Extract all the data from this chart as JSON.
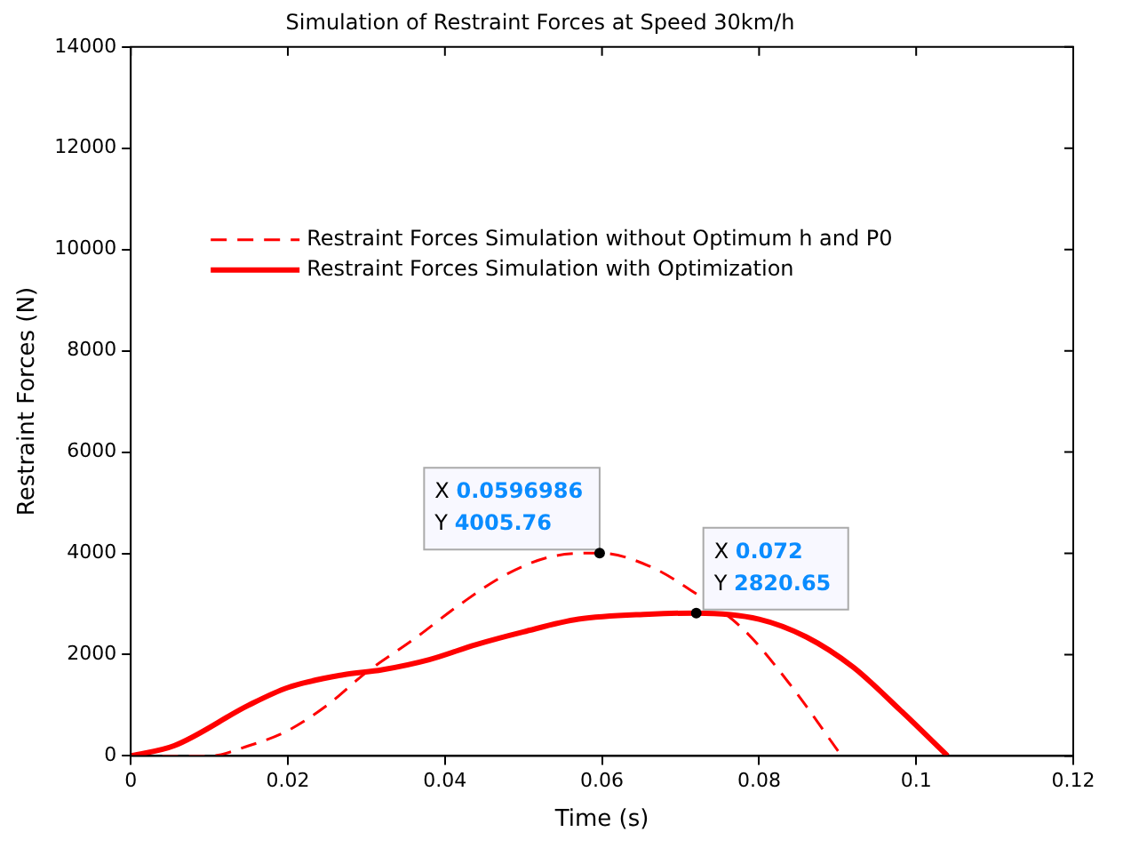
{
  "chart_data": {
    "type": "line",
    "title": "Simulation of Restraint Forces at Speed 30km/h",
    "xlabel": "Time (s)",
    "ylabel": "Restraint Forces (N)",
    "xlim": [
      0,
      0.12
    ],
    "xticks": [
      0,
      0.02,
      0.04,
      0.06,
      0.08,
      0.1,
      0.12
    ],
    "ylim": [
      0,
      14000
    ],
    "yticks": [
      0,
      2000,
      4000,
      6000,
      8000,
      10000,
      12000,
      14000
    ],
    "grid": false,
    "legend": "top left",
    "marker": "none",
    "series": [
      {
        "name": "Restraint Forces Simulation without Optimum h and P0",
        "color": "#ff0000",
        "line_style": "dashed",
        "x": [
          0.004,
          0.01,
          0.015,
          0.02,
          0.025,
          0.03,
          0.036,
          0.042,
          0.048,
          0.054,
          0.0596986,
          0.066,
          0.072,
          0.078,
          0.084,
          0.0905
        ],
        "values": [
          0,
          0,
          200,
          500,
          1000,
          1650,
          2300,
          3000,
          3600,
          3950,
          4005.76,
          3750,
          3200,
          2500,
          1400,
          0
        ]
      },
      {
        "name": "Restraint Forces Simulation with Optimization",
        "color": "#ff0000",
        "line_style": "solid",
        "x": [
          0,
          0.0055,
          0.015,
          0.02,
          0.027,
          0.032,
          0.038,
          0.044,
          0.05,
          0.057,
          0.066,
          0.072,
          0.08,
          0.086,
          0.092,
          0.098,
          0.104
        ],
        "values": [
          0,
          200,
          1000,
          1350,
          1600,
          1700,
          1900,
          2200,
          2450,
          2700,
          2800,
          2820.65,
          2700,
          2350,
          1750,
          900,
          0
        ]
      }
    ],
    "annotations": [
      {
        "text": "X 0.0596986\nY 4005.76",
        "x": 0.0596986,
        "y": 4005.76
      },
      {
        "text": "X 0.072\nY 2820.65",
        "x": 0.072,
        "y": 2820.65
      }
    ]
  }
}
